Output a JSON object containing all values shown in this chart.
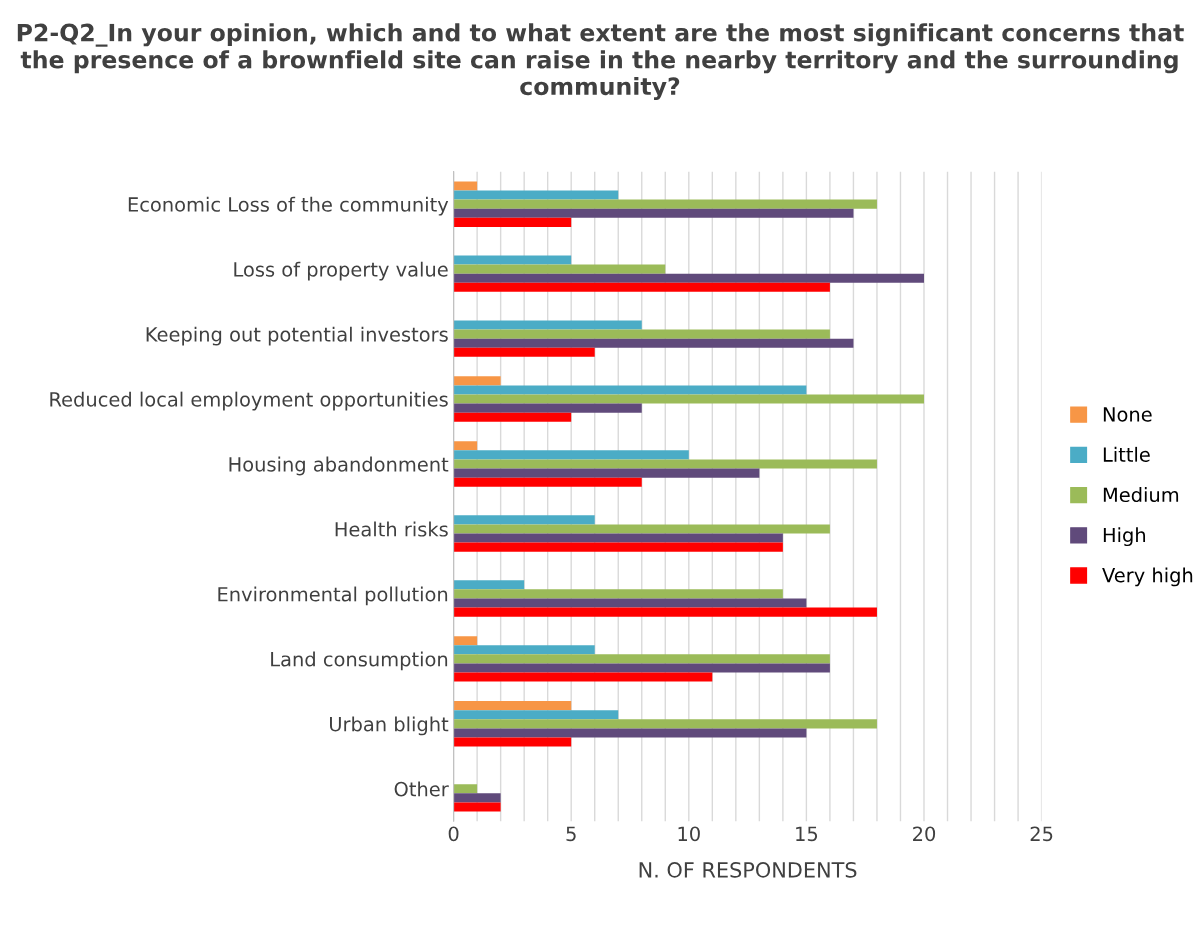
{
  "chart_data": {
    "type": "bar",
    "orientation": "horizontal",
    "title": "P2-Q2_In your opinion, which and to what extent are the most significant concerns that the presence of a brownfield site can raise in the nearby territory and the surrounding community?",
    "xlabel": "N. OF RESPONDENTS",
    "categories": [
      "Economic Loss of the community",
      "Loss of property value",
      "Keeping out potential investors",
      "Reduced local employment opportunities",
      "Housing abandonment",
      "Health risks",
      "Environmental pollution",
      "Land consumption",
      "Urban blight",
      "Other"
    ],
    "series": [
      {
        "name": "None",
        "color": "#f79646",
        "values": [
          1,
          0,
          0,
          2,
          1,
          0,
          0,
          1,
          5,
          0
        ]
      },
      {
        "name": "Little",
        "color": "#4bacc6",
        "values": [
          7,
          5,
          8,
          15,
          10,
          6,
          3,
          6,
          7,
          0
        ]
      },
      {
        "name": "Medium",
        "color": "#9bbb59",
        "values": [
          18,
          9,
          16,
          20,
          18,
          16,
          14,
          16,
          18,
          1
        ]
      },
      {
        "name": "High",
        "color": "#604a7b",
        "values": [
          17,
          20,
          17,
          8,
          13,
          14,
          15,
          16,
          15,
          2
        ]
      },
      {
        "name": "Very high",
        "color": "#ff0000",
        "values": [
          5,
          16,
          6,
          5,
          8,
          14,
          18,
          11,
          5,
          2
        ]
      }
    ],
    "xlim": [
      0,
      25
    ],
    "xticks": [
      0,
      {
        "value": 1,
        "label": null
      },
      {
        "value": 2,
        "label": null
      },
      {
        "value": 3,
        "label": null
      },
      {
        "value": 4,
        "label": null
      },
      5,
      {
        "value": 6,
        "label": null
      },
      {
        "value": 7,
        "label": null
      },
      {
        "value": 8,
        "label": null
      },
      {
        "value": 9,
        "label": null
      },
      10,
      {
        "value": 11,
        "label": null
      },
      {
        "value": 12,
        "label": null
      },
      {
        "value": 13,
        "label": null
      },
      {
        "value": 14,
        "label": null
      },
      15,
      {
        "value": 16,
        "label": null
      },
      {
        "value": 17,
        "label": null
      },
      {
        "value": 18,
        "label": null
      },
      {
        "value": 19,
        "label": null
      },
      20,
      {
        "value": 21,
        "label": null
      },
      {
        "value": 22,
        "label": null
      },
      {
        "value": 23,
        "label": null
      },
      {
        "value": 24,
        "label": null
      },
      25
    ],
    "grid": "x",
    "legend": "right"
  }
}
